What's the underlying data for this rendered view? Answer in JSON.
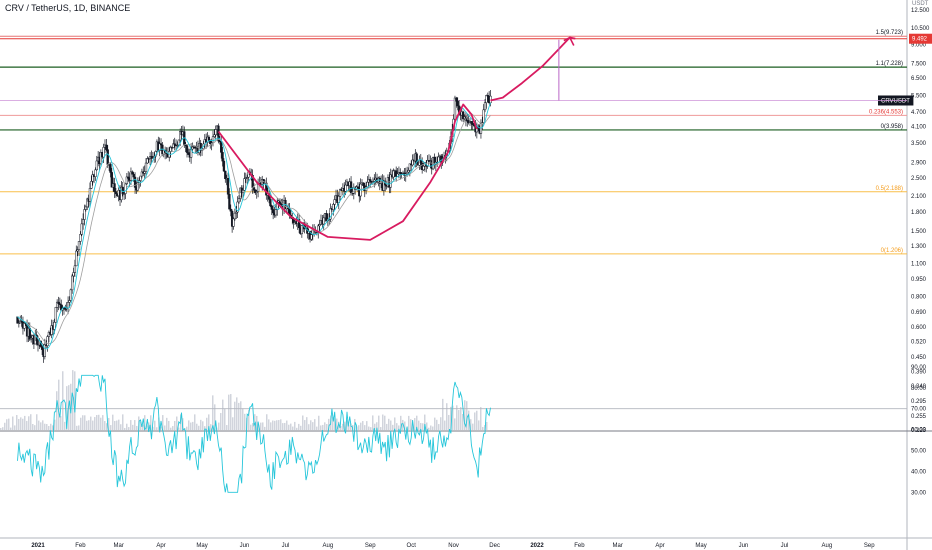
{
  "header": {
    "title": "CRV / TetherUS, 1D, BINANCE"
  },
  "chart_data": {
    "type": "candlestick",
    "symbol": "CRVUSDT",
    "price_axis": {
      "currency": "USDT",
      "scale": "log",
      "ticks": [
        0.223,
        0.255,
        0.295,
        0.34,
        0.39,
        0.45,
        0.52,
        0.6,
        0.69,
        0.8,
        0.95,
        1.1,
        1.3,
        1.5,
        1.8,
        2.1,
        2.5,
        2.9,
        3.5,
        4.1,
        4.7,
        5.5,
        6.5,
        7.5,
        9.0,
        10.5,
        12.5
      ],
      "ticks_label": [
        "0.223",
        "0.255",
        "0.295",
        "0.340",
        "0.390",
        "0.450",
        "0.520",
        "0.600",
        "0.690",
        "0.800",
        "0.950",
        "1.100",
        "1.300",
        "1.500",
        "1.800",
        "2.100",
        "2.500",
        "2.900",
        "3.500",
        "4.100",
        "4.700",
        "5.500",
        "6.500",
        "7.500",
        "9.000",
        "10.500",
        "12.500"
      ]
    },
    "time_axis": {
      "ticks": [
        "2021",
        "Feb",
        "Mar",
        "Apr",
        "May",
        "Jun",
        "Jul",
        "Aug",
        "Sep",
        "Oct",
        "Nov",
        "Dec",
        "2022",
        "Feb",
        "Mar",
        "Apr",
        "May",
        "Jun",
        "Jul",
        "Aug",
        "Sep"
      ]
    },
    "fib_levels": [
      {
        "label": "1.5(9.723)",
        "value": 9.723,
        "color": "#131722"
      },
      {
        "label": "1.1(7.228)",
        "value": 7.228,
        "color": "#131722"
      },
      {
        "label": "0.236(4.553)",
        "value": 4.553,
        "color": "#e53935"
      },
      {
        "label": "0(3.958)",
        "value": 3.958,
        "color": "#131722"
      },
      {
        "label": "0.5(2.188)",
        "value": 2.188,
        "color": "#f59c1a"
      },
      {
        "label": "0(1.206)",
        "value": 1.206,
        "color": "#f59c1a"
      }
    ],
    "markers": [
      {
        "label": "9.492",
        "value": 9.492,
        "color": "#e53935"
      },
      {
        "label": "CRVUSDT",
        "value": 5.25,
        "color": "#131722"
      }
    ],
    "price_path": [
      [
        "2020-12-17",
        0.66
      ],
      [
        "2020-12-24",
        0.58
      ],
      [
        "2020-12-31",
        0.52
      ],
      [
        "2021-01-05",
        0.46
      ],
      [
        "2021-01-12",
        0.62
      ],
      [
        "2021-01-16",
        0.76
      ],
      [
        "2021-01-22",
        0.68
      ],
      [
        "2021-01-27",
        1.05
      ],
      [
        "2021-02-03",
        1.7
      ],
      [
        "2021-02-09",
        2.35
      ],
      [
        "2021-02-14",
        2.95
      ],
      [
        "2021-02-19",
        3.35
      ],
      [
        "2021-02-24",
        2.4
      ],
      [
        "2021-03-02",
        2.1
      ],
      [
        "2021-03-09",
        2.55
      ],
      [
        "2021-03-15",
        2.3
      ],
      [
        "2021-03-22",
        2.9
      ],
      [
        "2021-03-29",
        3.4
      ],
      [
        "2021-04-05",
        3.05
      ],
      [
        "2021-04-11",
        3.35
      ],
      [
        "2021-04-16",
        3.95
      ],
      [
        "2021-04-20",
        3.1
      ],
      [
        "2021-04-27",
        3.25
      ],
      [
        "2021-05-03",
        3.65
      ],
      [
        "2021-05-08",
        3.5
      ],
      [
        "2021-05-12",
        3.9
      ],
      [
        "2021-05-19",
        2.35
      ],
      [
        "2021-05-23",
        1.65
      ],
      [
        "2021-05-29",
        2.15
      ],
      [
        "2021-06-03",
        2.65
      ],
      [
        "2021-06-09",
        2.25
      ],
      [
        "2021-06-15",
        2.45
      ],
      [
        "2021-06-21",
        1.75
      ],
      [
        "2021-06-27",
        2.0
      ],
      [
        "2021-07-05",
        1.75
      ],
      [
        "2021-07-12",
        1.55
      ],
      [
        "2021-07-20",
        1.42
      ],
      [
        "2021-07-25",
        1.55
      ],
      [
        "2021-08-01",
        1.75
      ],
      [
        "2021-08-09",
        2.1
      ],
      [
        "2021-08-15",
        2.3
      ],
      [
        "2021-08-23",
        2.2
      ],
      [
        "2021-08-30",
        2.35
      ],
      [
        "2021-09-05",
        2.5
      ],
      [
        "2021-09-12",
        2.3
      ],
      [
        "2021-09-19",
        2.6
      ],
      [
        "2021-09-27",
        2.55
      ],
      [
        "2021-10-04",
        3.1
      ],
      [
        "2021-10-10",
        2.75
      ],
      [
        "2021-10-18",
        2.9
      ],
      [
        "2021-10-23",
        3.05
      ],
      [
        "2021-10-28",
        3.15
      ],
      [
        "2021-11-02",
        5.1
      ],
      [
        "2021-11-07",
        4.7
      ],
      [
        "2021-11-12",
        4.35
      ],
      [
        "2021-11-18",
        3.9
      ],
      [
        "2021-11-22",
        4.25
      ],
      [
        "2021-11-25",
        5.7
      ],
      [
        "2021-11-28",
        5.3
      ]
    ],
    "projection": [
      [
        "2021-11-28",
        5.25
      ],
      [
        "2021-12-07",
        5.4
      ],
      [
        "2021-12-21",
        6.2
      ],
      [
        "2022-01-05",
        7.3
      ],
      [
        "2022-01-17",
        8.6
      ],
      [
        "2022-01-25",
        9.6
      ],
      [
        "2022-01-29",
        9.5
      ]
    ],
    "cup": [
      [
        "2021-05-13",
        3.9
      ],
      [
        "2021-06-10",
        2.4
      ],
      [
        "2021-07-05",
        1.72
      ],
      [
        "2021-08-01",
        1.42
      ],
      [
        "2021-09-01",
        1.38
      ],
      [
        "2021-09-25",
        1.65
      ],
      [
        "2021-10-15",
        2.4
      ],
      [
        "2021-10-28",
        3.2
      ],
      [
        "2021-11-02",
        4.3
      ],
      [
        "2021-11-08",
        5.05
      ],
      [
        "2021-11-14",
        4.6
      ],
      [
        "2021-11-18",
        4.0
      ]
    ],
    "rsi": {
      "ticks": [
        30,
        40,
        50,
        60,
        70,
        80,
        90
      ],
      "ticks_label": [
        "30.00",
        "40.00",
        "50.00",
        "60.00",
        "70.00",
        "80.00",
        "90.00"
      ],
      "level": 70,
      "last": 70.5
    },
    "volume": true,
    "ma_colors": [
      "#26c6da",
      "#9e9e9e"
    ],
    "grid": false
  }
}
